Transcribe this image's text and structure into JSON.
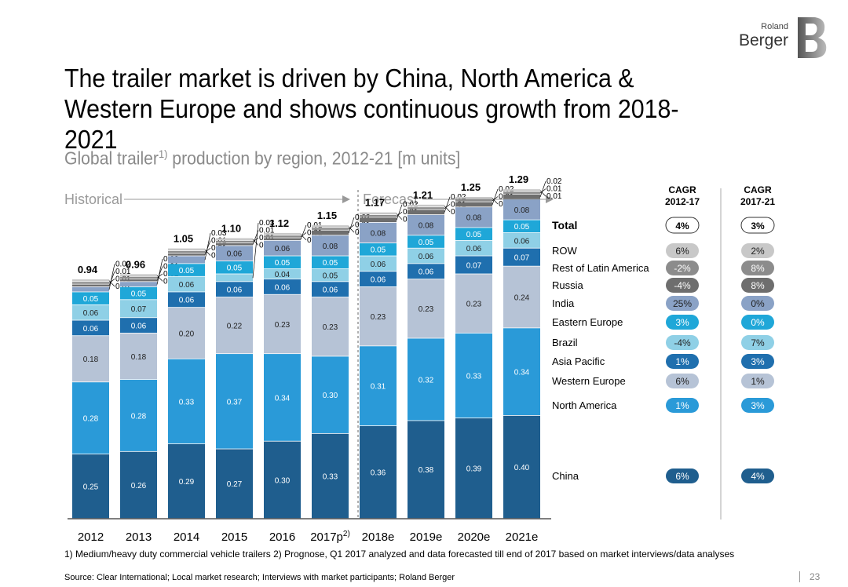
{
  "title": "The trailer market is driven by China, North America & Western Europe and shows continuous growth from 2018-2021",
  "subtitle_main": "Global trailer",
  "subtitle_sup": "1)",
  "subtitle_rest": " production by region, 2012-21 [m units]",
  "brand": {
    "line1": "Roland",
    "line2": "Berger"
  },
  "periods": {
    "historical": "Historical",
    "forecast": "Forecast"
  },
  "cagr_headers": [
    {
      "line1": "CAGR",
      "line2": "2012-17"
    },
    {
      "line1": "CAGR",
      "line2": "2017-21"
    }
  ],
  "total_label": "Total",
  "total_cagr": [
    "4%",
    "3%"
  ],
  "chart_data": {
    "type": "bar",
    "stacked": true,
    "title": "Global trailer production by region, 2012-21 [m units]",
    "categories": [
      "2012",
      "2013",
      "2014",
      "2015",
      "2016",
      "2017p",
      "2018e",
      "2019e",
      "2020e",
      "2021e"
    ],
    "category_sup": [
      "",
      "",
      "",
      "",
      "",
      "2)",
      "",
      "",
      "",
      ""
    ],
    "totals": [
      "0.94",
      "0.96",
      "1.05",
      "1.10",
      "1.12",
      "1.15",
      "1.17",
      "1.21",
      "1.25",
      "1.29"
    ],
    "series": [
      {
        "name": "China",
        "color": "#1f5e8e",
        "values": [
          0.25,
          0.26,
          0.29,
          0.27,
          0.3,
          0.33,
          0.36,
          0.38,
          0.39,
          0.4
        ],
        "labels": [
          "0.25",
          "0.26",
          "0.29",
          "0.27",
          "0.30",
          "0.33",
          "0.36",
          "0.38",
          "0.39",
          "0.40"
        ],
        "cagr": [
          "6%",
          "4%"
        ]
      },
      {
        "name": "North America",
        "color": "#2a9ad8",
        "values": [
          0.28,
          0.28,
          0.33,
          0.37,
          0.34,
          0.3,
          0.31,
          0.32,
          0.33,
          0.34
        ],
        "labels": [
          "0.28",
          "0.28",
          "0.33",
          "0.37",
          "0.34",
          "0.30",
          "0.31",
          "0.32",
          "0.33",
          "0.34"
        ],
        "cagr": [
          "1%",
          "3%"
        ]
      },
      {
        "name": "Western Europe",
        "color": "#b6c3d6",
        "values": [
          0.18,
          0.18,
          0.2,
          0.22,
          0.23,
          0.23,
          0.23,
          0.23,
          0.23,
          0.24
        ],
        "labels": [
          "0.18",
          "0.18",
          "0.20",
          "0.22",
          "0.23",
          "0.23",
          "0.23",
          "0.23",
          "0.23",
          "0.24"
        ],
        "cagr": [
          "6%",
          "1%"
        ]
      },
      {
        "name": "Asia Pacific",
        "color": "#1f6fae",
        "values": [
          0.06,
          0.06,
          0.06,
          0.06,
          0.06,
          0.06,
          0.06,
          0.06,
          0.07,
          0.07
        ],
        "labels": [
          "0.06",
          "0.06",
          "0.06",
          "0.06",
          "0.06",
          "0.06",
          "0.06",
          "0.06",
          "0.07",
          "0.07"
        ],
        "cagr": [
          "1%",
          "3%"
        ]
      },
      {
        "name": "Brazil",
        "color": "#8fd0e6",
        "values": [
          0.06,
          0.07,
          0.06,
          0.03,
          0.04,
          0.05,
          0.06,
          0.06,
          0.06,
          0.06
        ],
        "labels": [
          "0.06",
          "0.07",
          "0.06",
          "0.03",
          "0.04",
          "0.05",
          "0.06",
          "0.06",
          "0.06",
          "0.06"
        ],
        "cagr": [
          "-4%",
          "7%"
        ]
      },
      {
        "name": "Eastern Europe",
        "color": "#1fa7d8",
        "values": [
          0.05,
          0.05,
          0.05,
          0.05,
          0.05,
          0.05,
          0.05,
          0.05,
          0.05,
          0.05
        ],
        "labels": [
          "0.05",
          "0.05",
          "0.05",
          "0.05",
          "0.05",
          "0.05",
          "0.05",
          "0.05",
          "0.05",
          "0.05"
        ],
        "cagr": [
          "3%",
          "0%"
        ]
      },
      {
        "name": "India",
        "color": "#8aa2c6",
        "values": [
          0.02,
          0.02,
          0.03,
          0.06,
          0.06,
          0.08,
          0.08,
          0.08,
          0.08,
          0.08
        ],
        "labels": [
          "0.02",
          "0.02",
          "0.03",
          "0.06",
          "0.06",
          "0.08",
          "0.08",
          "0.08",
          "0.08",
          "0.08"
        ],
        "cagr": [
          "25%",
          "0%"
        ]
      },
      {
        "name": "Russia",
        "color": "#6e6e6e",
        "values": [
          0.01,
          0.01,
          0.01,
          0.01,
          0.01,
          0.02,
          0.02,
          0.02,
          0.02,
          0.02
        ],
        "labels": [
          "0.01",
          "0.01",
          "0.01",
          "0.01",
          "0.01",
          "0.02",
          "0.02",
          "0.02",
          "0.02",
          "0.02"
        ],
        "cagr": [
          "-4%",
          "8%"
        ]
      },
      {
        "name": "Rest of Latin America",
        "color": "#8c8c8c",
        "values": [
          0.01,
          0.01,
          0.01,
          0.01,
          0.01,
          0.01,
          0.01,
          0.01,
          0.01,
          0.01
        ],
        "labels": [
          "0.01",
          "0.01",
          "0.01",
          "0.01",
          "0.01",
          "0.01",
          "0.01",
          "0.01",
          "0.01",
          "0.01"
        ],
        "cagr": [
          "-2%",
          "8%"
        ]
      },
      {
        "name": "ROW",
        "color": "#c8c8c8",
        "values": [
          0.01,
          0.01,
          0.01,
          0.01,
          0.01,
          0.01,
          0.01,
          0.01,
          0.01,
          0.01
        ],
        "labels": [
          "0.01",
          "0.01",
          "0.01",
          "0.01",
          "0.01",
          "0.01",
          "0.01",
          "0.01",
          "0.01",
          "0.01"
        ],
        "cagr": [
          "6%",
          "2%"
        ]
      }
    ],
    "xlabel": "",
    "ylabel": "",
    "ylim": [
      0,
      1.35
    ]
  },
  "footnote": "1) Medium/heavy duty commercial vehicle trailers 2) Prognose, Q1 2017 analyzed and data forecasted till end of 2017 based on market interviews/data analyses",
  "source": "Source: Clear International; Local market research; Interviews with market participants; Roland Berger",
  "page_number": "23"
}
